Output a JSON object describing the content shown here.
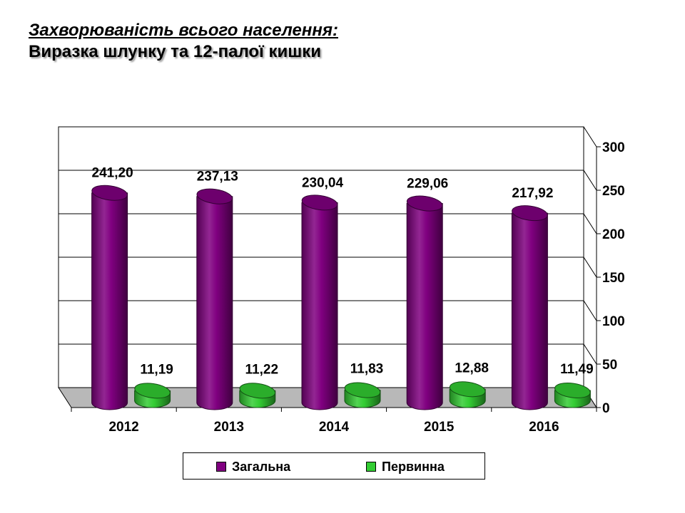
{
  "title": {
    "line1": "Захворюваність всього населення:",
    "line2": "Виразка шлунку та 12-палої кишки"
  },
  "chart_data": {
    "type": "bar",
    "categories": [
      "2012",
      "2013",
      "2014",
      "2015",
      "2016"
    ],
    "series": [
      {
        "name": "Загальна",
        "color": "#800080",
        "values": [
          241.2,
          237.13,
          230.04,
          229.06,
          217.92
        ],
        "labels": [
          "241,20",
          "237,13",
          "230,04",
          "229,06",
          "217,92"
        ]
      },
      {
        "name": "Первинна",
        "color": "#33cc33",
        "values": [
          11.19,
          11.22,
          11.83,
          12.88,
          11.49
        ],
        "labels": [
          "11,19",
          "11,22",
          "11,83",
          "12,88",
          "11,49"
        ]
      }
    ],
    "ylim": [
      0,
      300
    ],
    "yticks": [
      "0",
      "50",
      "100",
      "150",
      "200",
      "250",
      "300"
    ],
    "y_axis_side": "right",
    "grid": true,
    "legend_position": "bottom",
    "style": "3d-cylinder"
  }
}
